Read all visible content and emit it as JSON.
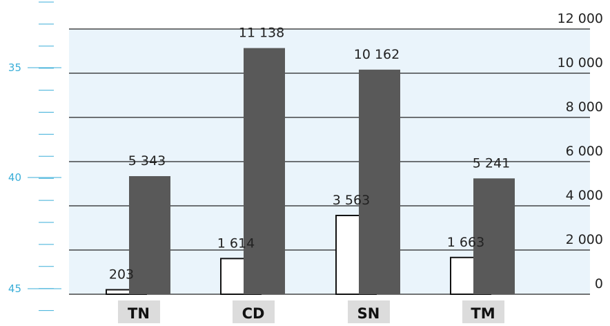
{
  "chart_data": {
    "type": "bar",
    "categories": [
      "TN",
      "CD",
      "SN",
      "TM"
    ],
    "series": [
      {
        "values": [
          203,
          1614,
          3563,
          1663
        ],
        "value_labels": [
          "203",
          "1 614",
          "3 563",
          "1 663"
        ]
      },
      {
        "values": [
          5343,
          11138,
          10162,
          5241
        ],
        "value_labels": [
          "5 343",
          "11 138",
          "10 162",
          "5 241"
        ]
      }
    ],
    "y_axis_right": {
      "ticks": [
        "0",
        "2 000",
        "4 000",
        "6 000",
        "8 000",
        "10 000",
        "12 000"
      ],
      "ylim": [
        0,
        12000
      ]
    },
    "y_axis_left": {
      "ticks": [
        "35",
        "40",
        "45"
      ],
      "tick_values": [
        35,
        40,
        45
      ]
    },
    "grid": true,
    "colors": {
      "plot_background": "#eaf4fb",
      "bar_light": "#ffffff",
      "bar_dark": "#595959",
      "category_box": "#dcdcdc",
      "left_axis": "#3aaed8",
      "text": "#222222",
      "gridline": "#222222"
    }
  }
}
